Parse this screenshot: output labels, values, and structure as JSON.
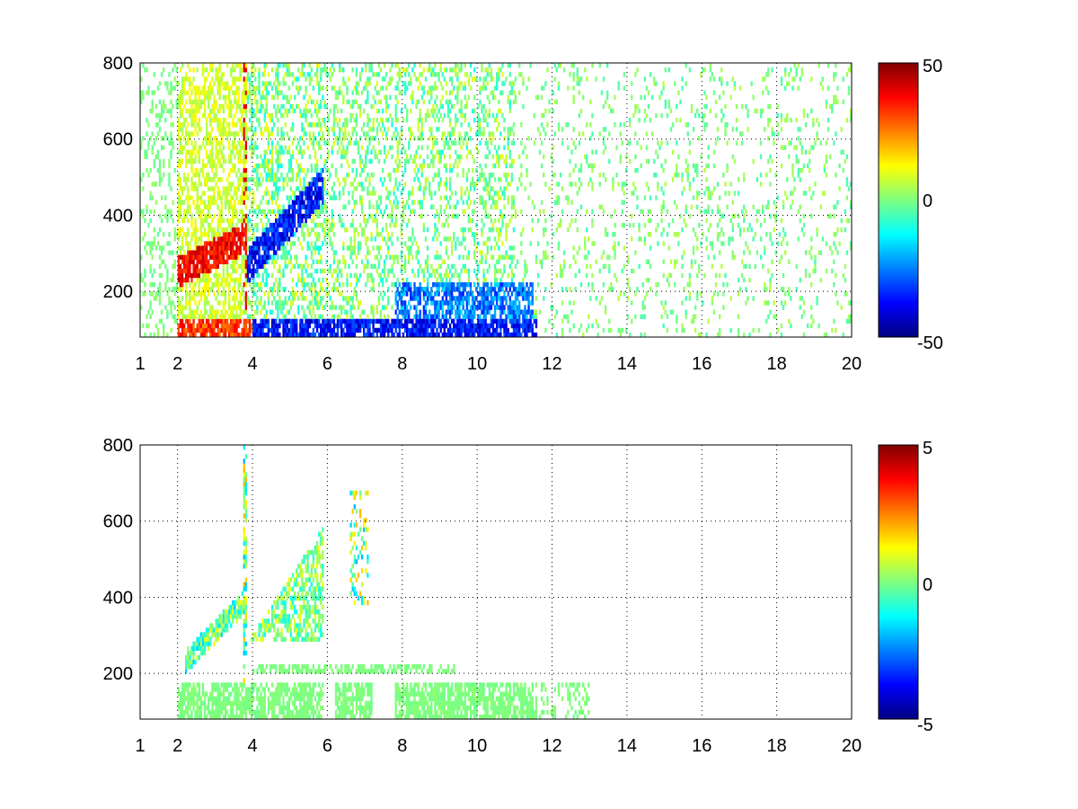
{
  "chart_data": [
    {
      "type": "heatmap",
      "title": "",
      "xlabel": "",
      "ylabel": "",
      "x_ticks": [
        "1",
        "2",
        "4",
        "6",
        "8",
        "10",
        "12",
        "14",
        "16",
        "18",
        "20"
      ],
      "y_ticks": [
        "200",
        "400",
        "600",
        "800"
      ],
      "xlim": [
        1,
        20
      ],
      "ylim": [
        80,
        800
      ],
      "grid": true,
      "colormap": "jet",
      "colorbar": {
        "min": -50,
        "max": 50,
        "ticks": [
          "-50",
          "0",
          "50"
        ],
        "placement": "right"
      },
      "structure": {
        "low_band_y": [
          80,
          125
        ],
        "low_band_x": [
          2,
          11.6
        ],
        "rising_ridge_positive": [
          [
            2,
            250
          ],
          [
            3,
            280
          ],
          [
            3.8,
            360
          ]
        ],
        "rising_ridge_negative": [
          [
            4,
            280
          ],
          [
            5,
            330
          ],
          [
            5.8,
            480
          ]
        ],
        "mid_band_negative_y": [
          130,
          230
        ],
        "mid_band_negative_x": [
          7.8,
          11.5
        ],
        "vertical_line_x": 3.8,
        "sparse_scatter_x": [
          6,
          20
        ]
      }
    },
    {
      "type": "heatmap",
      "title": "",
      "xlabel": "",
      "ylabel": "",
      "x_ticks": [
        "1",
        "2",
        "4",
        "6",
        "8",
        "10",
        "12",
        "14",
        "16",
        "18",
        "20"
      ],
      "y_ticks": [
        "200",
        "400",
        "600",
        "800"
      ],
      "xlim": [
        1,
        20
      ],
      "ylim": [
        80,
        800
      ],
      "grid": true,
      "colormap": "jet",
      "colorbar": {
        "min": -5,
        "max": 5,
        "ticks": [
          "-5",
          "0",
          "5"
        ],
        "placement": "right"
      },
      "structure": {
        "low_band_y": [
          80,
          180
        ],
        "low_band_x": [
          2,
          13
        ],
        "rising_ridge": [
          [
            2.2,
            230
          ],
          [
            3,
            280
          ],
          [
            3.8,
            400
          ]
        ],
        "ridge_upper": [
          [
            4,
            300
          ],
          [
            5,
            360
          ],
          [
            5.8,
            600
          ]
        ],
        "mid_band_y": [
          200,
          230
        ],
        "mid_band_x": [
          4,
          9.4
        ],
        "vertical_line_x": 3.8
      }
    }
  ]
}
